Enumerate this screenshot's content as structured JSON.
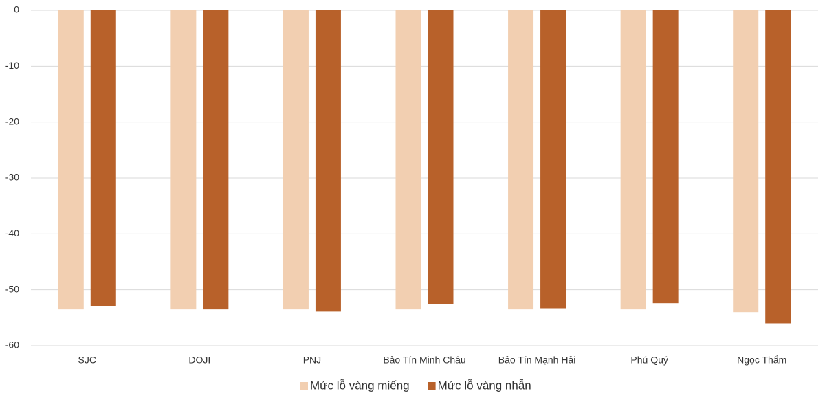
{
  "chart_data": {
    "type": "bar",
    "categories": [
      "SJC",
      "DOJI",
      "PNJ",
      "Bảo Tín Minh Châu",
      "Bảo Tín Mạnh Hải",
      "Phú Quý",
      "Ngọc Thẩm"
    ],
    "series": [
      {
        "name": "Mức lỗ vàng miếng",
        "color": "#f2cfb1",
        "values": [
          -53.5,
          -53.5,
          -53.5,
          -53.5,
          -53.5,
          -53.5,
          -54.0
        ]
      },
      {
        "name": "Mức lỗ vàng nhẫn",
        "color": "#b8612a",
        "values": [
          -52.9,
          -53.5,
          -53.9,
          -52.6,
          -53.3,
          -52.4,
          -56.0
        ]
      }
    ],
    "ylim": [
      0,
      -60
    ],
    "yticks": [
      0,
      -10,
      -20,
      -30,
      -40,
      -50,
      -60
    ],
    "grid": true,
    "legend": "bottom"
  }
}
